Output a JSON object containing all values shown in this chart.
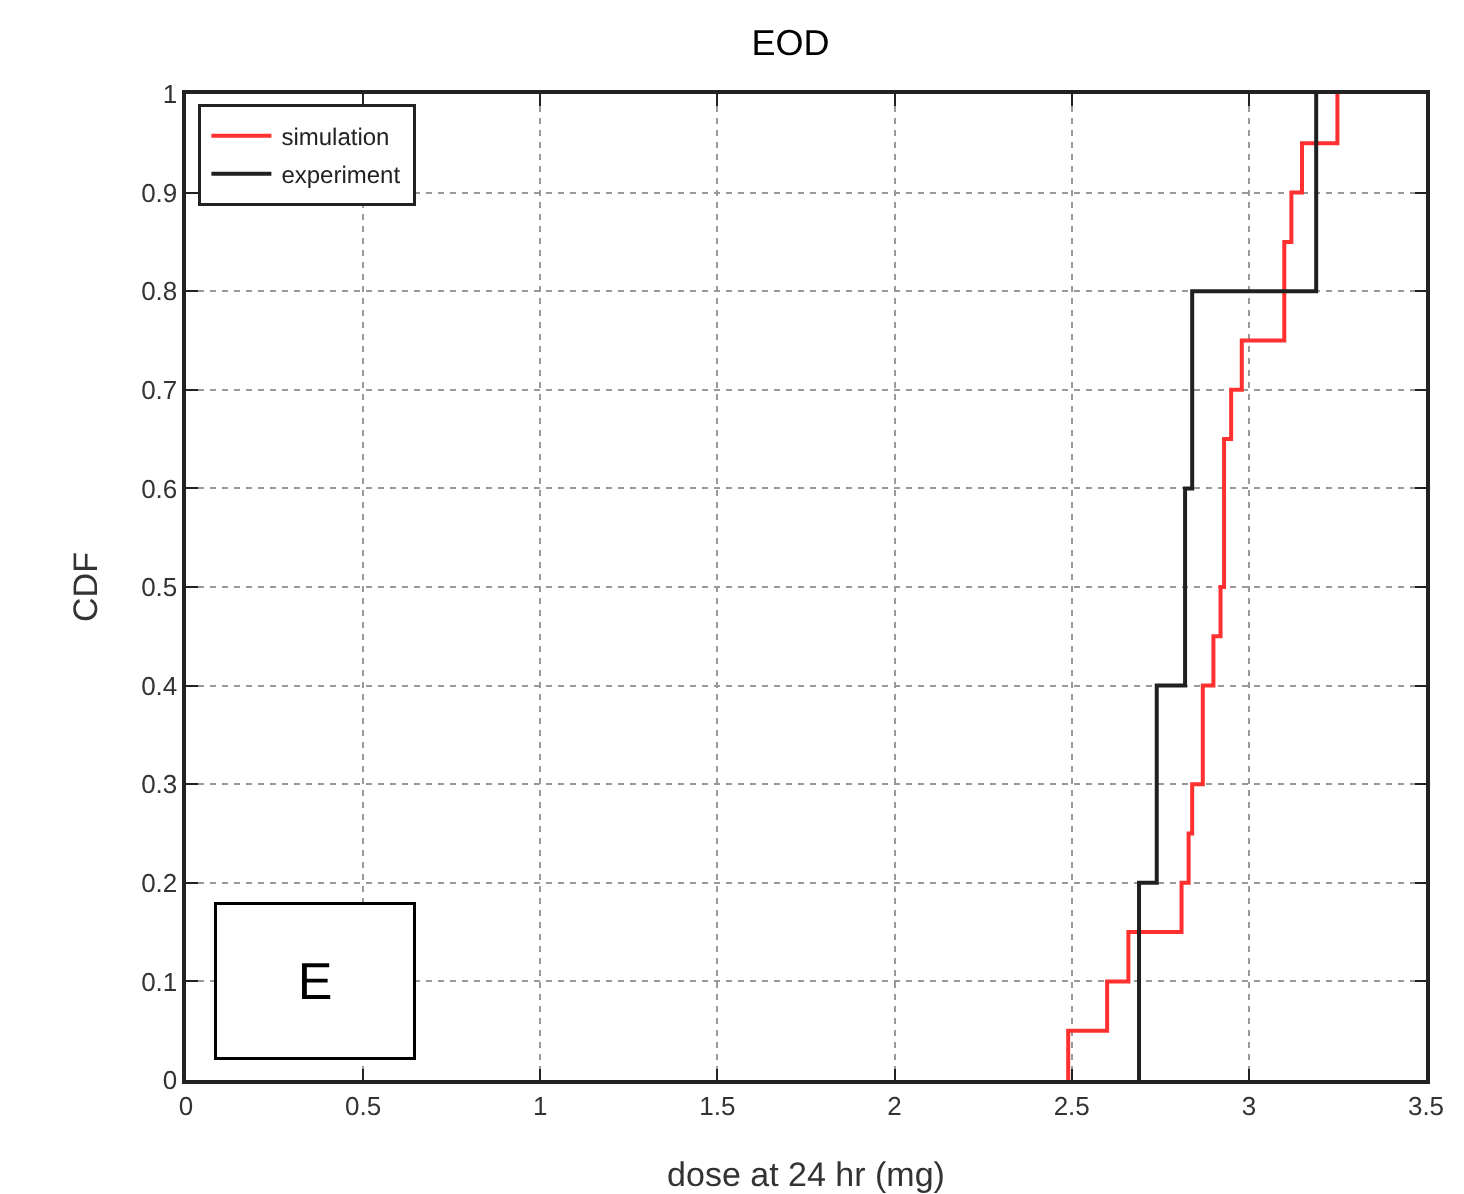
{
  "chart_data": {
    "type": "step",
    "title": "EOD",
    "xlabel": "dose at 24 hr (mg)",
    "ylabel": "CDF",
    "xlim": [
      0,
      3.5
    ],
    "xticks": [
      0,
      0.5,
      1,
      1.5,
      2,
      2.5,
      3,
      3.5
    ],
    "ylim": [
      0,
      1
    ],
    "yticks": [
      0,
      0.1,
      0.2,
      0.3,
      0.4,
      0.5,
      0.6,
      0.7,
      0.8,
      0.9,
      1
    ],
    "grid": true,
    "legend": "top left",
    "marker": "none",
    "line_style": "solid",
    "annotations": [
      "E"
    ],
    "series": [
      {
        "name": "simulation",
        "color": "#ff3030",
        "x": [
          2.49,
          2.49,
          2.6,
          2.66,
          2.81,
          2.83,
          2.84,
          2.87,
          2.9,
          2.92,
          2.93,
          2.95,
          2.98,
          3.1,
          3.12,
          3.15,
          3.25
        ],
        "values": [
          0,
          0.05,
          0.1,
          0.15,
          0.2,
          0.25,
          0.3,
          0.4,
          0.45,
          0.5,
          0.65,
          0.7,
          0.75,
          0.85,
          0.9,
          0.95,
          1
        ]
      },
      {
        "name": "experiment",
        "color": "#202020",
        "x": [
          2.69,
          2.69,
          2.74,
          2.82,
          2.84,
          3.19
        ],
        "values": [
          0,
          0.2,
          0.4,
          0.6,
          0.8,
          1
        ]
      }
    ]
  }
}
